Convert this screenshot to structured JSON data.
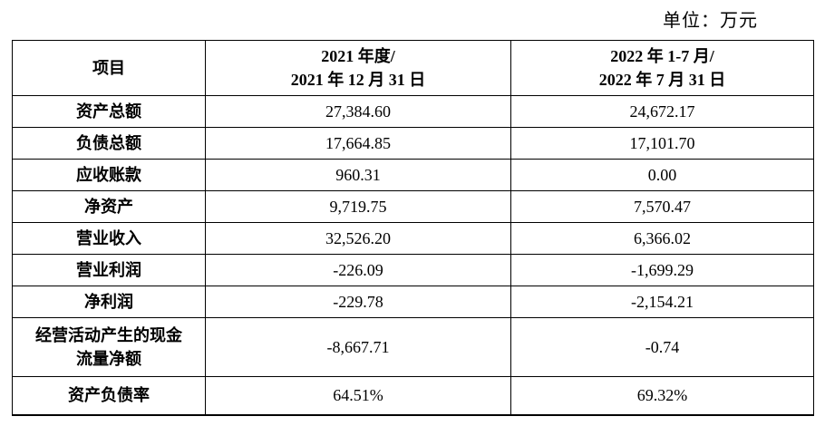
{
  "unit_label": "单位：万元",
  "colors": {
    "text": "#000000",
    "border": "#000000",
    "background": "#ffffff"
  },
  "table": {
    "header": {
      "item": "项目",
      "col2021": "2021 年度/\n2021 年 12 月 31 日",
      "col2022": "2022 年 1-7 月/\n2022 年 7 月 31 日"
    },
    "rows": [
      {
        "label": "资产总额",
        "v2021": "27,384.60",
        "v2022": "24,672.17"
      },
      {
        "label": "负债总额",
        "v2021": "17,664.85",
        "v2022": "17,101.70"
      },
      {
        "label": "应收账款",
        "v2021": "960.31",
        "v2022": "0.00"
      },
      {
        "label": "净资产",
        "v2021": "9,719.75",
        "v2022": "7,570.47"
      },
      {
        "label": "营业收入",
        "v2021": "32,526.20",
        "v2022": "6,366.02"
      },
      {
        "label": "营业利润",
        "v2021": "-226.09",
        "v2022": "-1,699.29"
      },
      {
        "label": "净利润",
        "v2021": "-229.78",
        "v2022": "-2,154.21"
      },
      {
        "label": "经营活动产生的现金\n流量净额",
        "v2021": "-8,667.71",
        "v2022": "-0.74"
      },
      {
        "label": "资产负债率",
        "v2021": "64.51%",
        "v2022": "69.32%"
      }
    ]
  }
}
